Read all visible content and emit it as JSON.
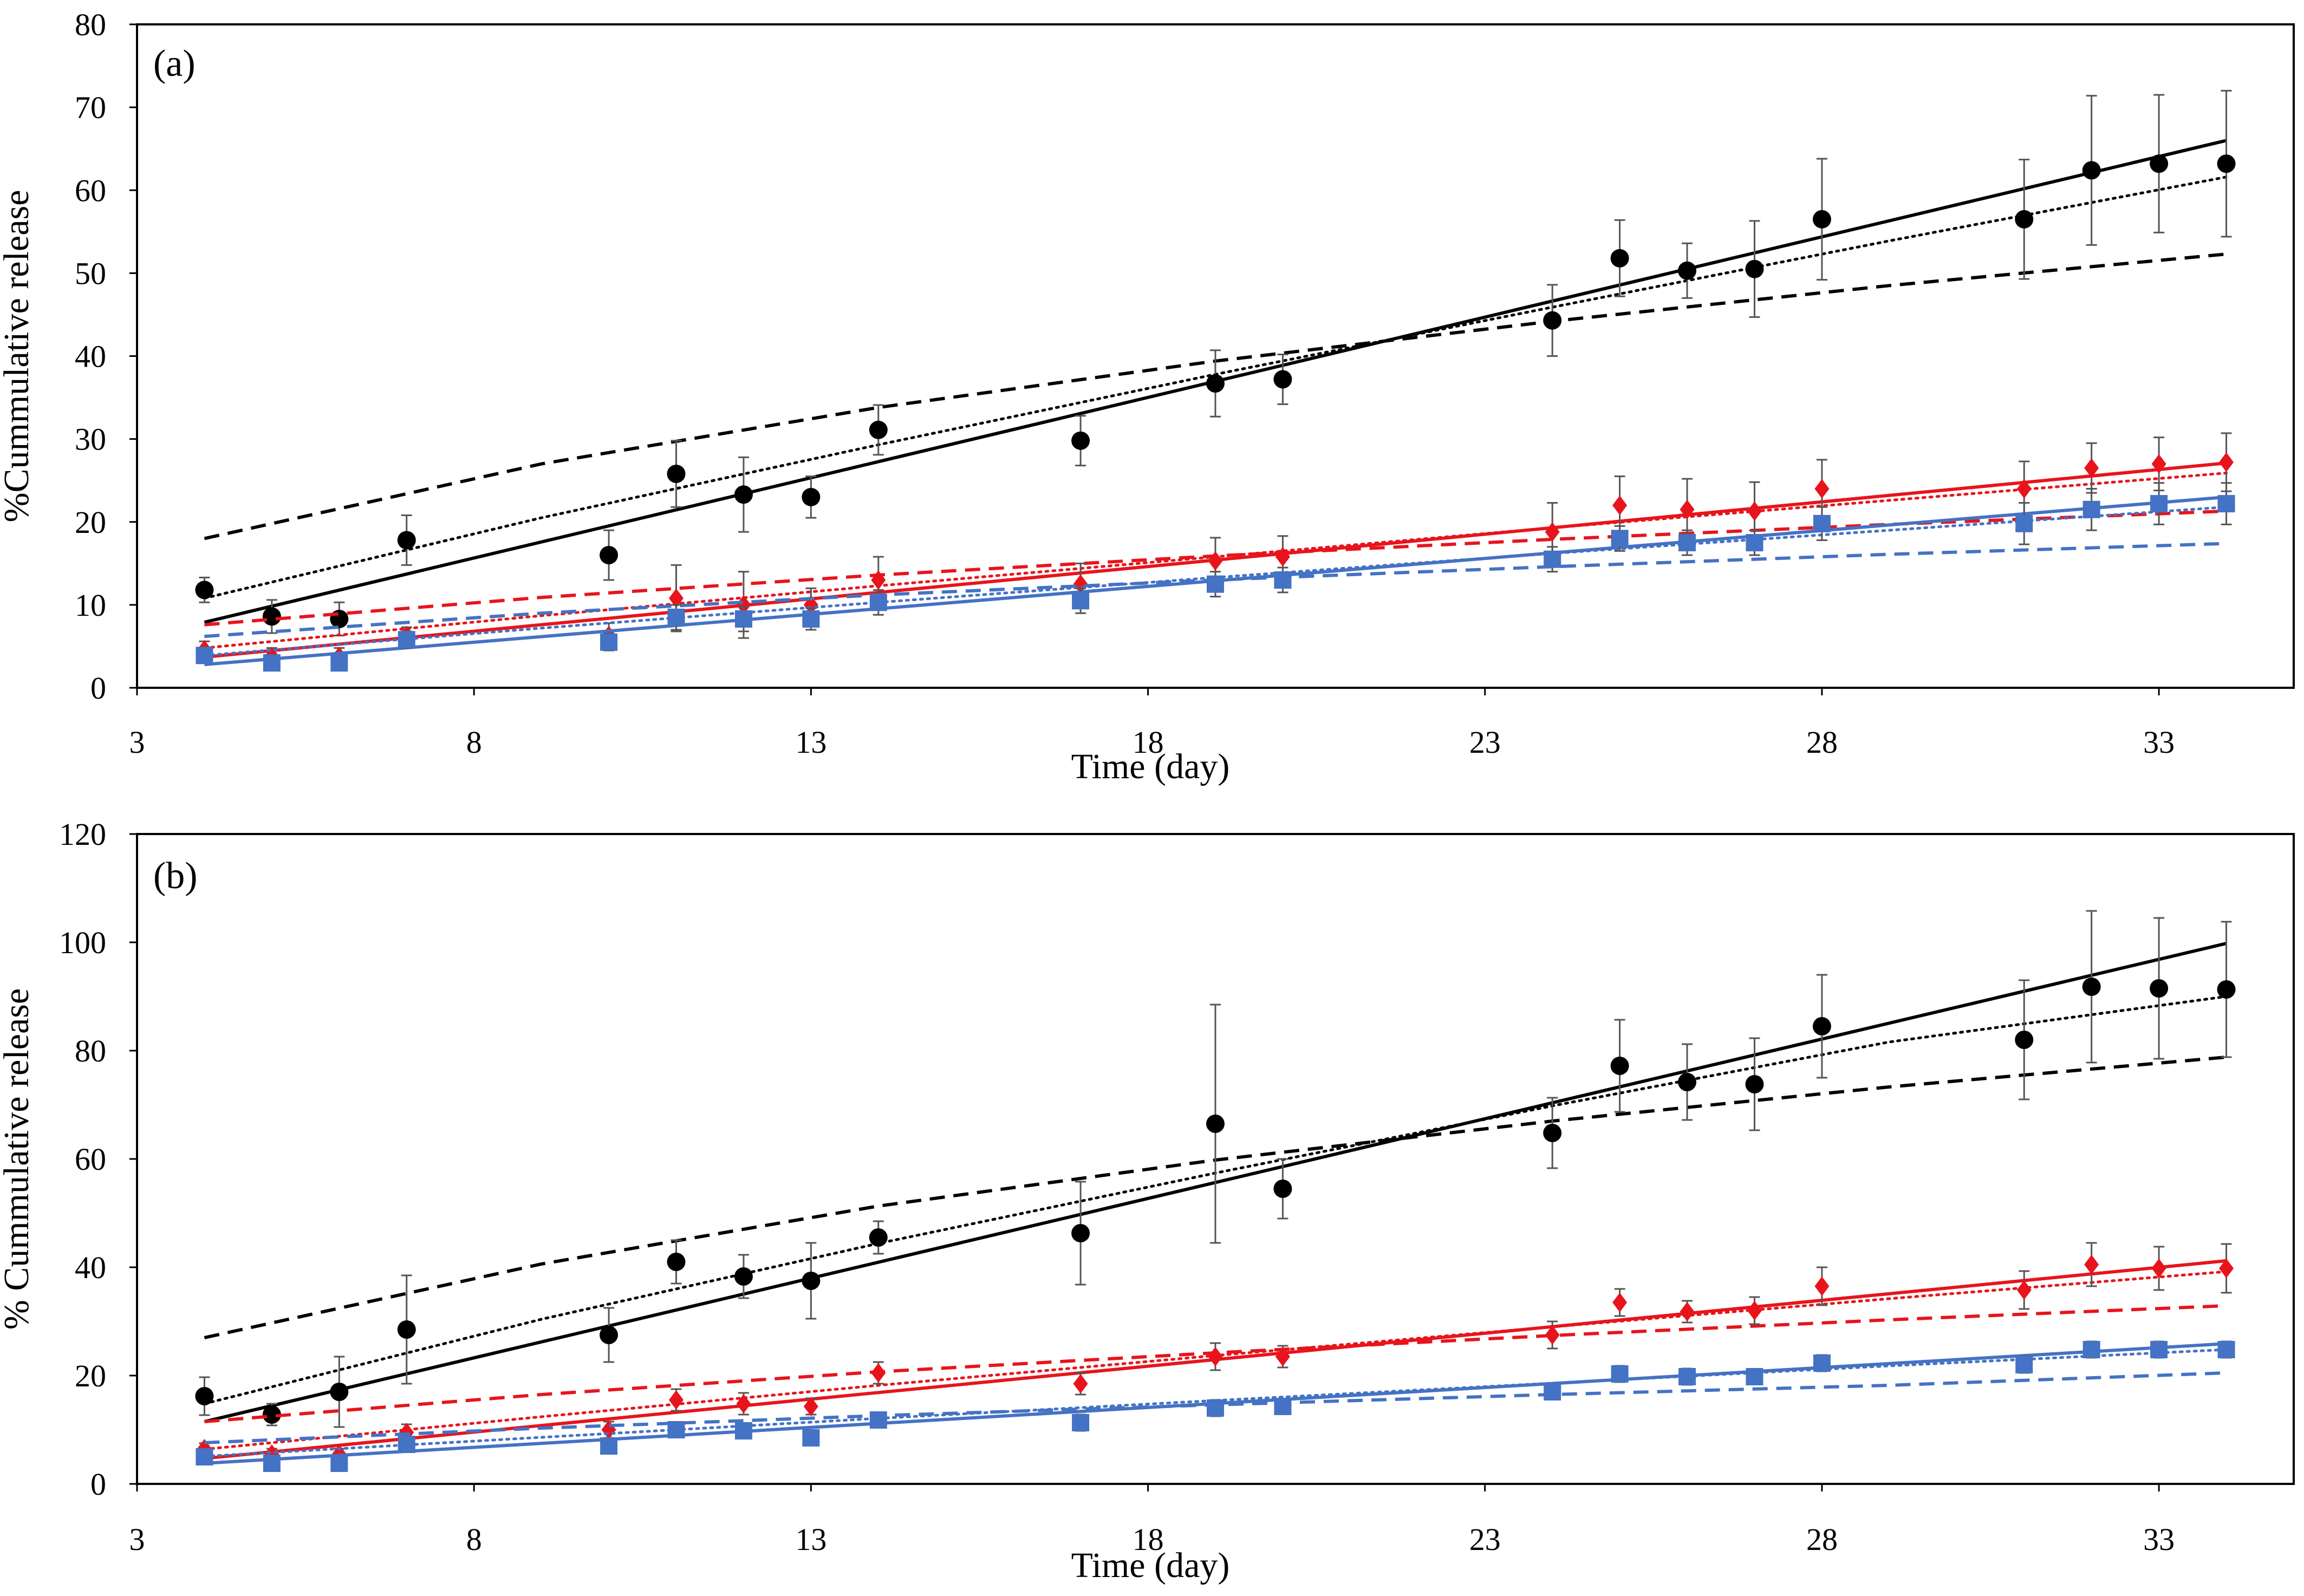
{
  "chart_data": [
    {
      "type": "scatter",
      "panel_label": "(a)",
      "xlabel": "Time (day)",
      "ylabel": "%Cummulative  release",
      "xlim": [
        3,
        35
      ],
      "ylim": [
        0,
        80
      ],
      "xticks": [
        3,
        8,
        13,
        18,
        23,
        28,
        33
      ],
      "yticks": [
        0,
        10,
        20,
        30,
        40,
        50,
        60,
        70,
        80
      ],
      "grid": false,
      "series": [
        {
          "name": "black",
          "color": "#000000",
          "marker": "circle",
          "x": [
            4,
            5,
            6,
            7,
            10,
            11,
            12,
            13,
            14,
            17,
            19,
            20,
            24,
            25,
            26,
            27,
            28,
            31,
            32,
            33,
            34
          ],
          "y": [
            11.8,
            8.6,
            8.3,
            17.8,
            16,
            25.8,
            23.3,
            23,
            31.1,
            29.8,
            36.7,
            37.2,
            44.3,
            51.8,
            50.3,
            50.5,
            56.5,
            56.5,
            62.4,
            63.2,
            63.2
          ],
          "err": [
            1.5,
            2,
            2,
            3,
            3,
            4,
            4.5,
            2.5,
            3,
            3,
            4,
            3,
            4.3,
            4.6,
            3.3,
            5.8,
            7.3,
            7.2,
            9,
            8.3,
            8.8
          ],
          "fits": [
            {
              "style": "solid",
              "x": [
                4,
                34
              ],
              "y": [
                7.9,
                66.0
              ]
            },
            {
              "style": "dotted",
              "x": [
                4,
                9,
                14,
                19,
                24,
                29,
                34
              ],
              "y": [
                10.8,
                20.5,
                29.3,
                37.8,
                45.9,
                53.9,
                61.6
              ]
            },
            {
              "style": "dashed",
              "x": [
                4,
                9,
                14,
                19,
                24,
                29,
                34
              ],
              "y": [
                18.0,
                27.0,
                33.8,
                39.4,
                44.2,
                48.5,
                52.3
              ]
            }
          ]
        },
        {
          "name": "red",
          "color": "#e8141c",
          "marker": "diamond",
          "x": [
            4,
            5,
            6,
            7,
            10,
            11,
            12,
            13,
            14,
            17,
            19,
            20,
            24,
            25,
            26,
            27,
            28,
            31,
            32,
            33,
            34
          ],
          "y": [
            4.6,
            3.8,
            3.8,
            6.3,
            6.3,
            10.8,
            10,
            10,
            13,
            12.5,
            15.3,
            15.8,
            18.8,
            22,
            21.5,
            21.3,
            24,
            24,
            26.5,
            27,
            27.2
          ],
          "err": [
            1,
            1,
            1,
            1,
            1.5,
            4,
            4,
            2,
            2.8,
            2.5,
            2.8,
            2.5,
            3.5,
            3.5,
            3.7,
            3.5,
            3.5,
            3.3,
            3,
            3.2,
            3.5
          ],
          "fits": [
            {
              "style": "solid",
              "x": [
                4,
                34
              ],
              "y": [
                3.7,
                27.1
              ]
            },
            {
              "style": "dotted",
              "x": [
                4,
                9,
                14,
                19,
                24,
                29,
                34
              ],
              "y": [
                4.8,
                8.7,
                12.3,
                15.8,
                19.3,
                22.6,
                25.9
              ]
            },
            {
              "style": "dashed",
              "x": [
                4,
                9,
                14,
                19,
                24,
                29,
                34
              ],
              "y": [
                7.6,
                10.9,
                13.6,
                15.9,
                17.9,
                19.7,
                21.3
              ]
            }
          ]
        },
        {
          "name": "blue",
          "color": "#4472c4",
          "marker": "square",
          "x": [
            4,
            5,
            6,
            7,
            10,
            11,
            12,
            13,
            14,
            17,
            19,
            20,
            24,
            25,
            26,
            27,
            28,
            31,
            32,
            33,
            34
          ],
          "y": [
            3.9,
            3,
            3,
            5.8,
            5.5,
            8.5,
            8.3,
            8.3,
            10.3,
            10.5,
            12.5,
            13,
            15.5,
            18,
            17.5,
            17.5,
            19.8,
            19.8,
            21.5,
            22.2,
            22.2
          ],
          "err": [
            0.8,
            0.8,
            0.8,
            1,
            1,
            1.5,
            1.5,
            1.3,
            1.5,
            1.5,
            1.5,
            1.5,
            1.5,
            1.5,
            1.5,
            1.5,
            2,
            2.5,
            2.5,
            2.5,
            2.5
          ],
          "fits": [
            {
              "style": "solid",
              "x": [
                4,
                34
              ],
              "y": [
                2.8,
                23.0
              ]
            },
            {
              "style": "dotted",
              "x": [
                4,
                9,
                14,
                19,
                24,
                29,
                34
              ],
              "y": [
                3.9,
                7.2,
                10.3,
                13.3,
                16.2,
                19.0,
                21.8
              ]
            },
            {
              "style": "dashed",
              "x": [
                4,
                9,
                14,
                19,
                24,
                29,
                34
              ],
              "y": [
                6.2,
                9.0,
                11.2,
                13.0,
                14.6,
                16.1,
                17.4
              ]
            }
          ]
        }
      ]
    },
    {
      "type": "scatter",
      "panel_label": "(b)",
      "xlabel": "Time (day)",
      "ylabel": "% Cummulative release",
      "xlim": [
        3,
        35
      ],
      "ylim": [
        0,
        120
      ],
      "xticks": [
        3,
        8,
        13,
        18,
        23,
        28,
        33
      ],
      "yticks": [
        0,
        20,
        40,
        60,
        80,
        100,
        120
      ],
      "grid": false,
      "series": [
        {
          "name": "black",
          "color": "#000000",
          "marker": "circle",
          "x": [
            4,
            5,
            6,
            7,
            10,
            11,
            12,
            13,
            14,
            17,
            19,
            20,
            24,
            25,
            26,
            27,
            28,
            31,
            32,
            33,
            34
          ],
          "y": [
            16.2,
            12.8,
            17,
            28.5,
            27.5,
            41,
            38.3,
            37.5,
            45.5,
            46.3,
            66.5,
            54.5,
            64.8,
            77.2,
            74.2,
            73.8,
            84.5,
            82,
            91.8,
            91.5,
            91.3
          ],
          "err": [
            3.5,
            2,
            6.5,
            10,
            5,
            4,
            4,
            7,
            3,
            9.5,
            22,
            5.5,
            6.5,
            8.5,
            7,
            8.5,
            9.5,
            11,
            14,
            13,
            12.5
          ],
          "fits": [
            {
              "style": "solid",
              "x": [
                4,
                34
              ],
              "y": [
                11.5,
                99.8
              ]
            },
            {
              "style": "dotted",
              "x": [
                4,
                9,
                14,
                19,
                24,
                29,
                34
              ],
              "y": [
                14.8,
                30.4,
                44.4,
                57.4,
                69.8,
                81.6,
                90.0
              ]
            },
            {
              "style": "dashed",
              "x": [
                4,
                9,
                14,
                19,
                24,
                29,
                34
              ],
              "y": [
                27.0,
                40.6,
                51.3,
                59.8,
                67.0,
                73.3,
                78.8
              ]
            }
          ]
        },
        {
          "name": "red",
          "color": "#e8141c",
          "marker": "diamond",
          "x": [
            4,
            5,
            6,
            7,
            10,
            11,
            12,
            13,
            14,
            17,
            19,
            20,
            24,
            25,
            26,
            27,
            28,
            31,
            32,
            33,
            34
          ],
          "y": [
            6.5,
            5.5,
            5.5,
            9.5,
            10,
            15.5,
            14.8,
            14.3,
            20.5,
            18.5,
            23.5,
            23.5,
            27.5,
            33.5,
            31.8,
            32,
            36.5,
            35.8,
            40.5,
            39.8,
            39.8
          ],
          "err": [
            1,
            1,
            1,
            1.5,
            1.5,
            2,
            2,
            1.5,
            2,
            2,
            2.5,
            2,
            2.5,
            2.5,
            2,
            2.5,
            3.5,
            3.5,
            4,
            4,
            4.5
          ],
          "fits": [
            {
              "style": "solid",
              "x": [
                4,
                34
              ],
              "y": [
                4.7,
                41.2
              ]
            },
            {
              "style": "dotted",
              "x": [
                4,
                9,
                14,
                19,
                24,
                29,
                34
              ],
              "y": [
                6.4,
                12.4,
                18.2,
                23.7,
                29.0,
                34.2,
                39.2
              ]
            },
            {
              "style": "dashed",
              "x": [
                4,
                9,
                14,
                19,
                24,
                29,
                34
              ],
              "y": [
                11.5,
                16.5,
                20.7,
                24.2,
                27.4,
                30.3,
                32.9
              ]
            }
          ]
        },
        {
          "name": "blue",
          "color": "#4472c4",
          "marker": "square",
          "x": [
            4,
            5,
            6,
            7,
            10,
            11,
            12,
            13,
            14,
            17,
            19,
            20,
            24,
            25,
            26,
            27,
            28,
            31,
            32,
            33,
            34
          ],
          "y": [
            5,
            3.8,
            3.8,
            7.3,
            7,
            10,
            9.8,
            8.5,
            11.8,
            11.3,
            14,
            14.3,
            17,
            20.3,
            19.8,
            19.8,
            22.3,
            22,
            24.8,
            24.8,
            24.8
          ],
          "err": [
            0.8,
            0.8,
            0.8,
            1,
            1,
            1,
            1,
            1,
            1,
            1.5,
            1.5,
            1,
            1.2,
            1.5,
            1.5,
            1.3,
            1.5,
            1.5,
            1.5,
            1.5,
            1.5
          ],
          "fits": [
            {
              "style": "solid",
              "x": [
                4,
                34
              ],
              "y": [
                3.8,
                25.9
              ]
            },
            {
              "style": "dotted",
              "x": [
                4,
                9,
                14,
                19,
                24,
                29,
                34
              ],
              "y": [
                5.1,
                8.6,
                12.1,
                15.4,
                18.6,
                21.8,
                24.8
              ]
            },
            {
              "style": "dashed",
              "x": [
                4,
                9,
                14,
                19,
                24,
                29,
                34
              ],
              "y": [
                7.6,
                10.3,
                12.6,
                14.6,
                16.5,
                18.2,
                20.5
              ]
            }
          ]
        }
      ]
    }
  ]
}
